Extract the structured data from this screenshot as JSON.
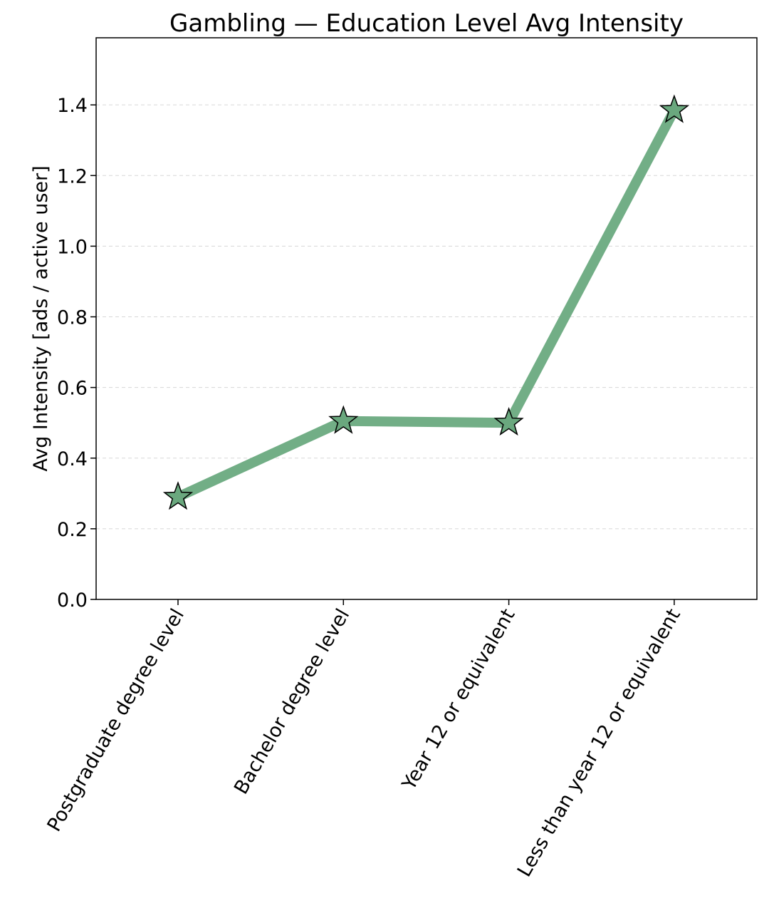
{
  "chart_data": {
    "type": "line",
    "title": "Gambling — Education Level Avg Intensity",
    "xlabel": "",
    "ylabel": "Avg Intensity [ads / active user]",
    "categories": [
      "Postgraduate degree level",
      "Bachelor degree level",
      "Year 12 or equivalent",
      "Less than year 12 or equivalent"
    ],
    "series": [
      {
        "values": [
          0.29,
          0.505,
          0.5,
          1.385
        ]
      }
    ],
    "ylim": [
      0,
      1.59
    ],
    "yticks": [
      0.0,
      0.2,
      0.4,
      0.6,
      0.8,
      1.0,
      1.2,
      1.4
    ],
    "ytick_labels": [
      "0.0",
      "0.2",
      "0.4",
      "0.6",
      "0.8",
      "1.0",
      "1.2",
      "1.4"
    ],
    "grid": "horizontal-dashed",
    "marker": "star",
    "line_color": "#72ae86",
    "marker_color": "#6aa87e",
    "marker_edge_color": "#000000"
  }
}
